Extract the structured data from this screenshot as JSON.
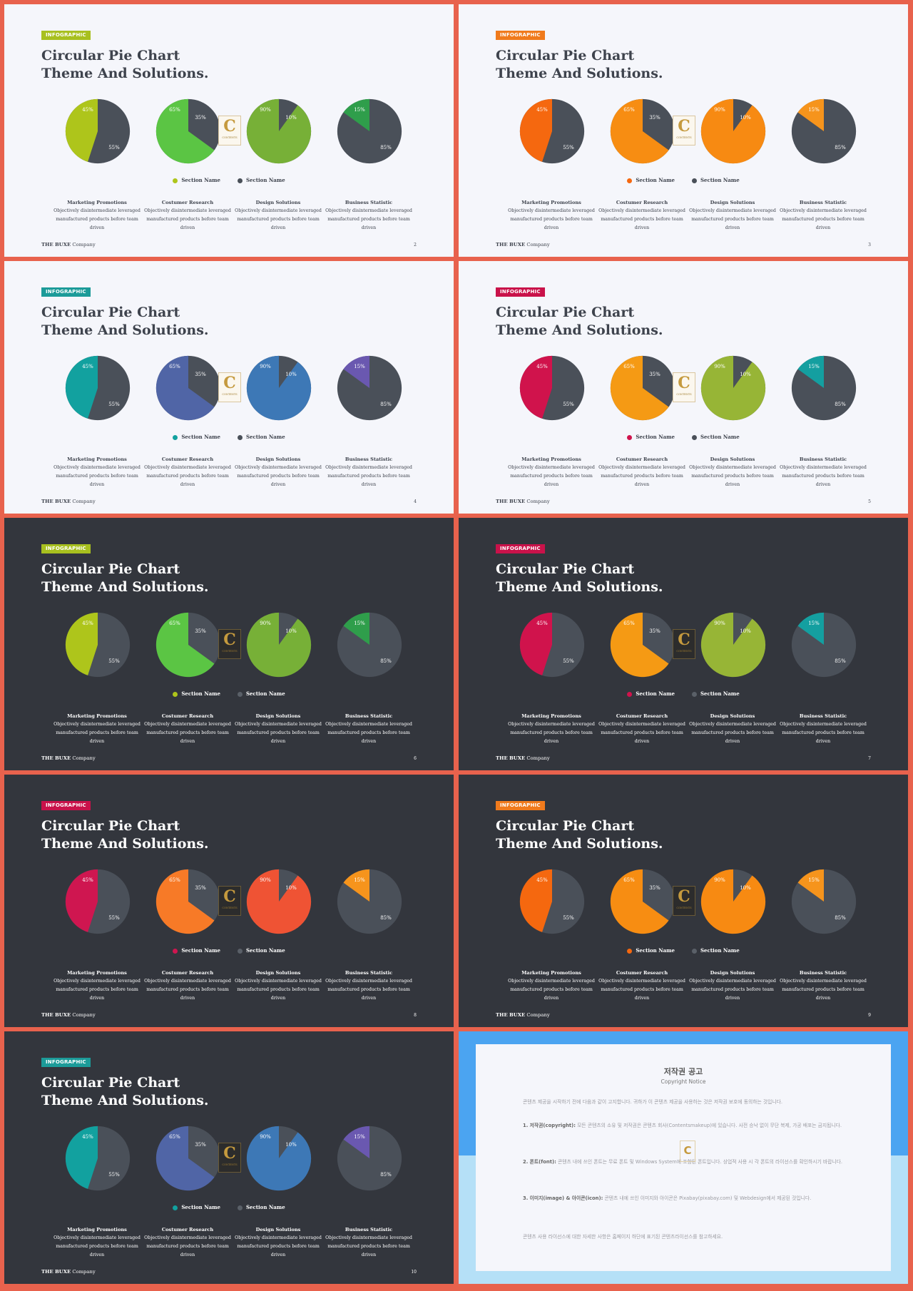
{
  "common": {
    "tag": "INFOGRAPHIC",
    "title_line1": "Circular Pie Chart",
    "title_line2": "Theme And Solutions.",
    "legend": [
      "Section Name",
      "Section Name"
    ],
    "columns": [
      {
        "heading": "Marketing Promotions",
        "line1": "Objectively disintermediate leveraged",
        "line2": "manufactured products before team driven"
      },
      {
        "heading": "Costumer Research",
        "line1": "Objectively disintermediate leveraged",
        "line2": "manufactured products before team driven"
      },
      {
        "heading": "Design Solutions",
        "line1": "Objectively disintermediate leveraged",
        "line2": "manufactured products before team driven"
      },
      {
        "heading": "Business Statistic",
        "line1": "Objectively disintermediate leveraged",
        "line2": "manufactured products before team driven"
      }
    ],
    "brand_bold": "THE BUXE",
    "brand_rest": " Company",
    "logo_letter": "C",
    "logo_text": "CONTENTS"
  },
  "chart_data": [
    {
      "type": "pie",
      "slices": [
        {
          "label": "45%",
          "value": 45
        },
        {
          "label": "55%",
          "value": 55
        }
      ]
    },
    {
      "type": "pie",
      "slices": [
        {
          "label": "65%",
          "value": 65
        },
        {
          "label": "35%",
          "value": 35
        }
      ]
    },
    {
      "type": "pie",
      "slices": [
        {
          "label": "90%",
          "value": 90
        },
        {
          "label": "10%",
          "value": 10
        }
      ]
    },
    {
      "type": "pie",
      "slices": [
        {
          "label": "15%",
          "value": 15
        },
        {
          "label": "85%",
          "value": 85
        }
      ]
    }
  ],
  "slides": [
    {
      "page": "2",
      "theme": "light",
      "tag_color": "#a8c01f",
      "colors": [
        "#aec51b",
        "#5bc544",
        "#77b037",
        "#2f9e4b"
      ],
      "other": "#4a5059",
      "legend_colors": [
        "#aec51b",
        "#4a5059"
      ]
    },
    {
      "page": "3",
      "theme": "light",
      "tag_color": "#f07a1c",
      "colors": [
        "#f5680f",
        "#f78d12",
        "#f78a12",
        "#f6941c"
      ],
      "other": "#4a5059",
      "legend_colors": [
        "#f5680f",
        "#4a5059"
      ]
    },
    {
      "page": "4",
      "theme": "light",
      "tag_color": "#1c9b99",
      "colors": [
        "#12a19f",
        "#5065a6",
        "#3d78b6",
        "#6a58b0"
      ],
      "other": "#4a5059",
      "legend_colors": [
        "#12a19f",
        "#4a5059"
      ]
    },
    {
      "page": "5",
      "theme": "light",
      "tag_color": "#c9124a",
      "colors": [
        "#d0134c",
        "#f59a14",
        "#97b536",
        "#149fa0"
      ],
      "other": "#4a5059",
      "legend_colors": [
        "#d0134c",
        "#4a5059"
      ]
    },
    {
      "page": "6",
      "theme": "dark",
      "tag_color": "#a8c01f",
      "colors": [
        "#aec51b",
        "#5bc544",
        "#77b037",
        "#2f9e4b"
      ],
      "other": "#4a5059",
      "legend_colors": [
        "#aec51b",
        "#5a6068"
      ]
    },
    {
      "page": "7",
      "theme": "dark",
      "tag_color": "#c9124a",
      "colors": [
        "#d0134c",
        "#f59a14",
        "#97b536",
        "#149fa0"
      ],
      "other": "#4a5059",
      "legend_colors": [
        "#d0134c",
        "#5a6068"
      ]
    },
    {
      "page": "8",
      "theme": "dark",
      "tag_color": "#c9124a",
      "colors": [
        "#cf1650",
        "#f77a27",
        "#ef5334",
        "#f6941c"
      ],
      "other": "#4a5059",
      "legend_colors": [
        "#cf1650",
        "#5a6068"
      ]
    },
    {
      "page": "9",
      "theme": "dark",
      "tag_color": "#f07a1c",
      "colors": [
        "#f5680f",
        "#f78d12",
        "#f78a12",
        "#f6941c"
      ],
      "other": "#4a5059",
      "legend_colors": [
        "#f5680f",
        "#5a6068"
      ]
    },
    {
      "page": "10",
      "theme": "dark",
      "tag_color": "#1c9b99",
      "colors": [
        "#12a19f",
        "#5065a6",
        "#3d78b6",
        "#6a58b0"
      ],
      "other": "#4a5059",
      "legend_colors": [
        "#12a19f",
        "#5a6068"
      ]
    }
  ],
  "copyright": {
    "title": "저작권 공고",
    "subtitle": "Copyright Notice",
    "intro": "콘텐츠 제공을 시작하기 전에 다음과 같이 고지합니다. 귀하가 이 콘텐츠 제공을 사용하는 것은 저작권 보호에 동의하는 것입니다.",
    "p1_bold": "1. 저작권(copyright):",
    "p1": " 모든 콘텐츠의 소유 및 저작권은 콘텐츠 회사(Contentsmakeup)에 있습니다. 사전 승낙 없이 무단 복제, 가공 배포는 금지됩니다.",
    "p2_bold": "2. 폰트(font):",
    "p2": " 콘텐츠 내에 쓰인 폰트는 무료 폰트 및 Windows System에 포함된 폰트입니다. 상업적 사용 시 각 폰트의 라이선스를 확인하시기 바랍니다.",
    "p3_bold": "3. 이미지(image) & 아이콘(icon):",
    "p3": " 콘텐츠 내에 쓰인 이미지와 아이콘은 Pixabay(pixabay.com) 및 Webdesign에서 제공된 것입니다.",
    "footer": "콘텐츠 사용 라이선스에 대한 자세한 사항은 홈페이지 하단에 표기된 콘텐츠라이선스를 참고하세요."
  }
}
